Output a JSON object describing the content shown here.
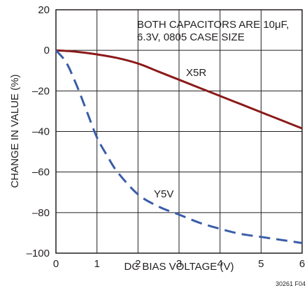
{
  "chart_data": {
    "type": "line",
    "xlabel": "DC BIAS VOLTAGE (V)",
    "ylabel": "CHANGE IN VALUE (%)",
    "xlim": [
      0,
      6
    ],
    "ylim": [
      -100,
      20
    ],
    "xticks": [
      0,
      1,
      2,
      3,
      4,
      5,
      6
    ],
    "yticks": [
      20,
      0,
      -20,
      -40,
      -60,
      -80,
      -100
    ],
    "xtick_labels": [
      "0",
      "1",
      "2",
      "3",
      "4",
      "5",
      "6"
    ],
    "ytick_labels": [
      "20",
      "0",
      "–20",
      "–40",
      "–60",
      "–80",
      "–100"
    ],
    "grid": true,
    "annotation": [
      "BOTH CAPACITORS ARE 10μF,",
      "6.3V, 0805 CASE SIZE"
    ],
    "figure_id": "30261 F04",
    "series": [
      {
        "name": "X5R",
        "style": "solid",
        "color": "#8b1a1a",
        "x": [
          0,
          0.5,
          1,
          1.5,
          2,
          2.5,
          3,
          3.5,
          4,
          4.5,
          5,
          5.5,
          6
        ],
        "y": [
          0,
          -0.7,
          -2,
          -3.8,
          -6.5,
          -10.5,
          -14.5,
          -18.5,
          -22.5,
          -26.5,
          -30.5,
          -34.5,
          -38.5
        ]
      },
      {
        "name": "Y5V",
        "style": "dashed",
        "color": "#3a5da8",
        "x": [
          0,
          0.25,
          0.5,
          0.75,
          1,
          1.25,
          1.5,
          2,
          2.5,
          3,
          3.5,
          4,
          4.5,
          5,
          5.5,
          6
        ],
        "y": [
          0,
          -6,
          -17,
          -30,
          -43,
          -52,
          -60,
          -71,
          -77,
          -81,
          -85,
          -88,
          -90.5,
          -92,
          -93.5,
          -95
        ]
      }
    ]
  }
}
